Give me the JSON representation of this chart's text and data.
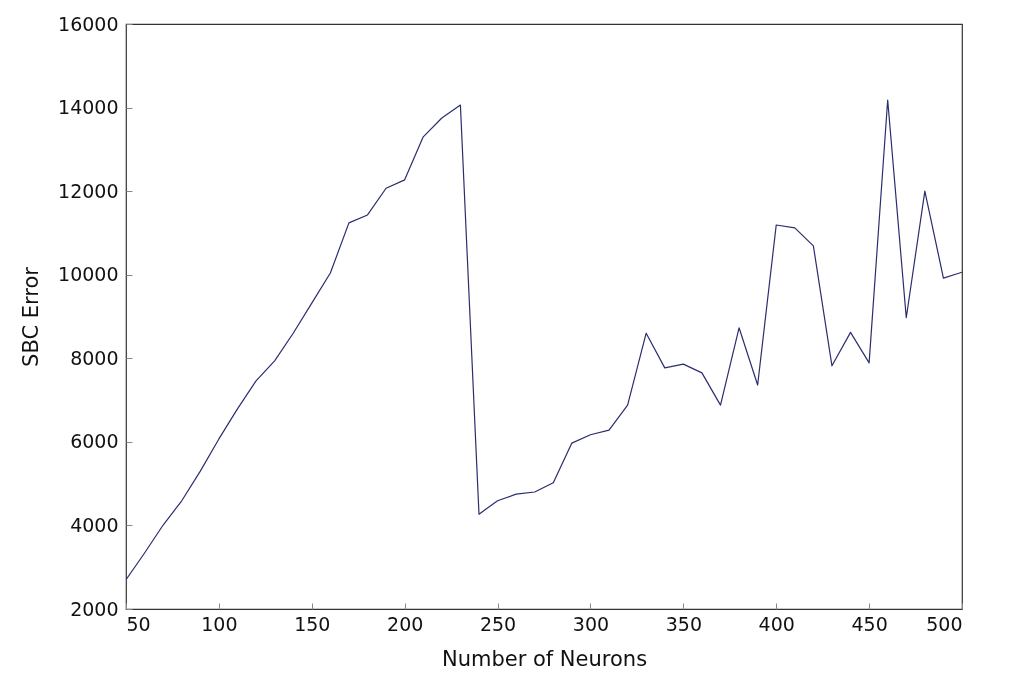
{
  "chart_data": {
    "type": "line",
    "xlabel": "Number of Neurons",
    "ylabel": "SBC Error",
    "x": [
      50,
      60,
      70,
      80,
      90,
      100,
      110,
      120,
      130,
      140,
      150,
      160,
      170,
      180,
      190,
      200,
      210,
      220,
      230,
      240,
      250,
      260,
      270,
      280,
      290,
      300,
      310,
      320,
      330,
      340,
      350,
      360,
      370,
      380,
      390,
      400,
      410,
      420,
      430,
      440,
      450,
      460,
      470,
      480,
      490,
      500
    ],
    "series": [
      {
        "color": "#2b2d6e",
        "values": [
          2700,
          3340,
          4010,
          4590,
          5300,
          6070,
          6790,
          7460,
          7940,
          8600,
          9320,
          10040,
          11240,
          11430,
          12070,
          12270,
          13300,
          13750,
          14060,
          4270,
          4590,
          4750,
          4800,
          5020,
          5970,
          6170,
          6280,
          6880,
          8600,
          7770,
          7860,
          7650,
          6880,
          8730,
          7360,
          11190,
          11120,
          10690,
          7820,
          8620,
          7890,
          14180,
          8970,
          12000,
          9920,
          10060
        ]
      }
    ],
    "xlim": [
      50,
      500
    ],
    "xticks": [
      50,
      100,
      150,
      200,
      250,
      300,
      350,
      400,
      450,
      500
    ],
    "ylim": [
      2000,
      16000
    ],
    "yticks": [
      2000,
      4000,
      6000,
      8000,
      10000,
      12000,
      14000,
      16000
    ],
    "grid": false,
    "legend": false,
    "marker": "none",
    "line_style": "solid"
  }
}
